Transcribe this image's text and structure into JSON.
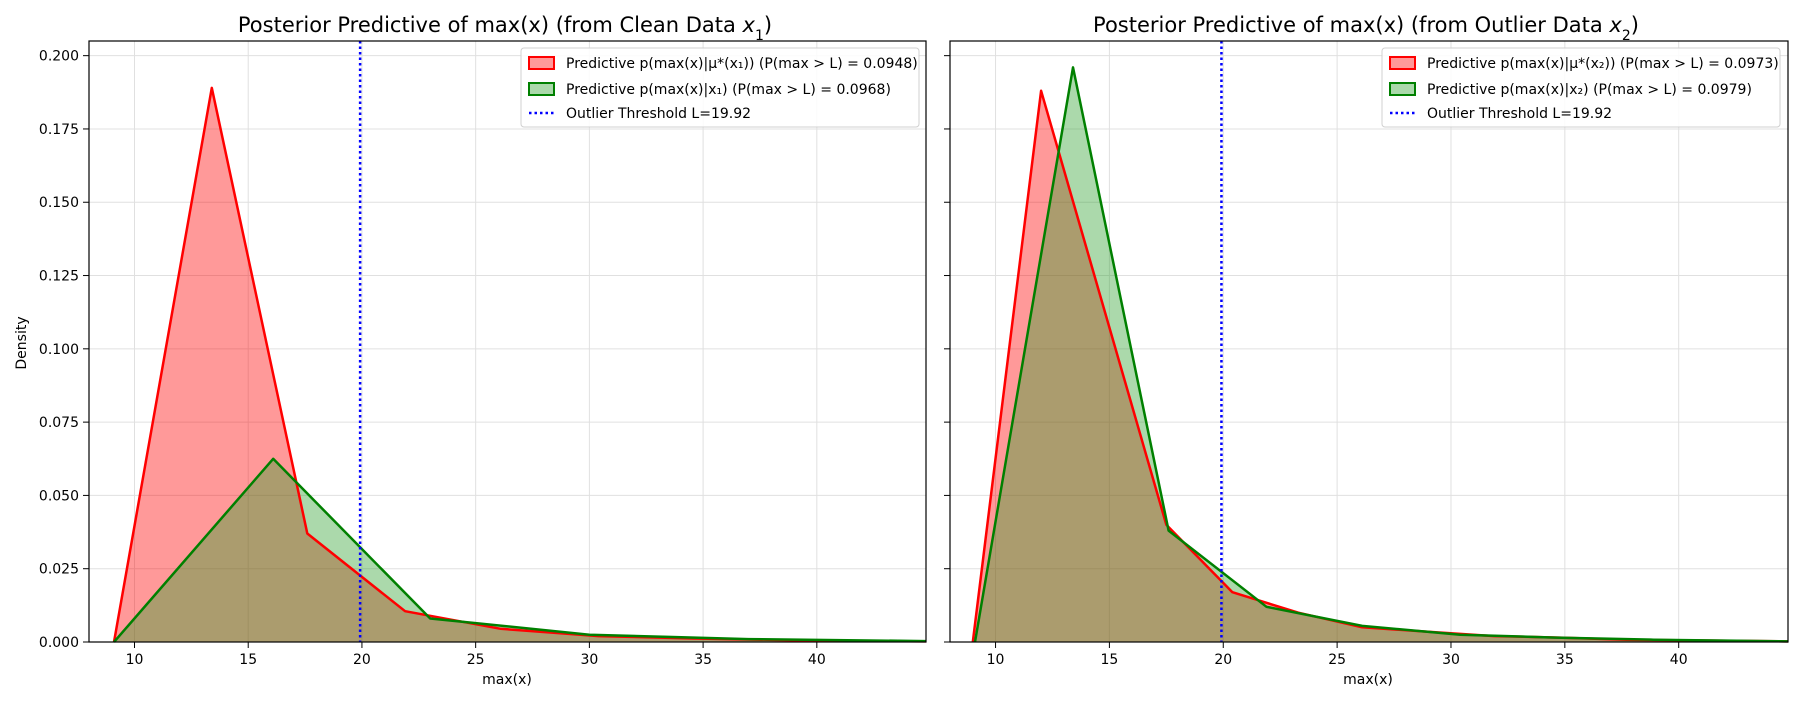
{
  "figure": {
    "background": "#ffffff",
    "grid_color": "#e0e0e0",
    "ylabel": "Density",
    "xlabel": "max(x)",
    "yticks": [
      "0.000",
      "0.025",
      "0.050",
      "0.075",
      "0.100",
      "0.125",
      "0.150",
      "0.175",
      "0.200"
    ],
    "xticks": [
      "10",
      "15",
      "20",
      "25",
      "30",
      "35",
      "40"
    ]
  },
  "chart_data": [
    {
      "type": "area",
      "title": "Posterior Predictive of max(x) (from Clean Data x₁)",
      "title_prefix": "Posterior Predictive of max(x) (from Clean Data ",
      "title_var": "x",
      "title_sub": "1",
      "title_suffix": ")",
      "xlabel": "max(x)",
      "ylabel": "Density",
      "xlim": [
        8,
        44.8
      ],
      "ylim": [
        0,
        0.205
      ],
      "grid": true,
      "legend_position": "top-right",
      "threshold": {
        "value": 19.92,
        "label": "Outlier Threshold L=19.92",
        "color": "#0000ff"
      },
      "series": [
        {
          "name": "Predictive p(max(x)|μ*(x₁)) (P(max > L) = 0.0948)",
          "legend_main": "Predictive p(max(x)|μ*(x₁))",
          "legend_prob": "(P(max > L) = 0.0948)",
          "color": "#ff0000",
          "fill": "#ff0000",
          "x": [
            9.1,
            13.4,
            17.6,
            21.9,
            26.1,
            30.4,
            34.6,
            38.9,
            44.8
          ],
          "y": [
            0.0,
            0.189,
            0.037,
            0.0105,
            0.0045,
            0.002,
            0.0012,
            0.0006,
            0.0002
          ]
        },
        {
          "name": "Predictive p(max(x)|x₁) (P(max > L) = 0.0968)",
          "legend_main": "Predictive p(max(x)|x₁)",
          "legend_prob": "(P(max > L) = 0.0968)",
          "color": "#008000",
          "fill": "#2ca02c",
          "x": [
            9.1,
            16.1,
            23.0,
            30.0,
            37.0,
            44.8
          ],
          "y": [
            0.0,
            0.0625,
            0.008,
            0.0025,
            0.001,
            0.0003
          ]
        }
      ]
    },
    {
      "type": "area",
      "title": "Posterior Predictive of max(x) (from Outlier Data x₂)",
      "title_prefix": "Posterior Predictive of max(x) (from Outlier Data ",
      "title_var": "x",
      "title_sub": "2",
      "title_suffix": ")",
      "xlabel": "max(x)",
      "ylabel": "",
      "xlim": [
        8,
        44.8
      ],
      "ylim": [
        0,
        0.205
      ],
      "grid": true,
      "legend_position": "top-right",
      "threshold": {
        "value": 19.92,
        "label": "Outlier Threshold L=19.92",
        "color": "#0000ff"
      },
      "series": [
        {
          "name": "Predictive p(max(x)|μ*(x₂)) (P(max > L) = 0.0973)",
          "legend_main": "Predictive p(max(x)|μ*(x₂))",
          "legend_prob": "(P(max > L) = 0.0973)",
          "color": "#ff0000",
          "fill": "#ff0000",
          "x": [
            9.0,
            12.0,
            17.5,
            20.4,
            23.3,
            26.1,
            29.0,
            31.9,
            34.8,
            37.7,
            44.8
          ],
          "y": [
            0.0,
            0.188,
            0.04,
            0.017,
            0.01,
            0.005,
            0.0035,
            0.002,
            0.0015,
            0.0008,
            0.0002
          ]
        },
        {
          "name": "Predictive p(max(x)|x₂) (P(max > L) = 0.0979)",
          "legend_main": "Predictive p(max(x)|x₂)",
          "legend_prob": "(P(max > L) = 0.0979)",
          "color": "#008000",
          "fill": "#2ca02c",
          "x": [
            9.1,
            13.4,
            17.6,
            21.9,
            26.1,
            30.4,
            34.6,
            38.9,
            44.8
          ],
          "y": [
            0.0,
            0.196,
            0.038,
            0.012,
            0.0055,
            0.0025,
            0.0015,
            0.0008,
            0.0002
          ]
        }
      ]
    }
  ]
}
